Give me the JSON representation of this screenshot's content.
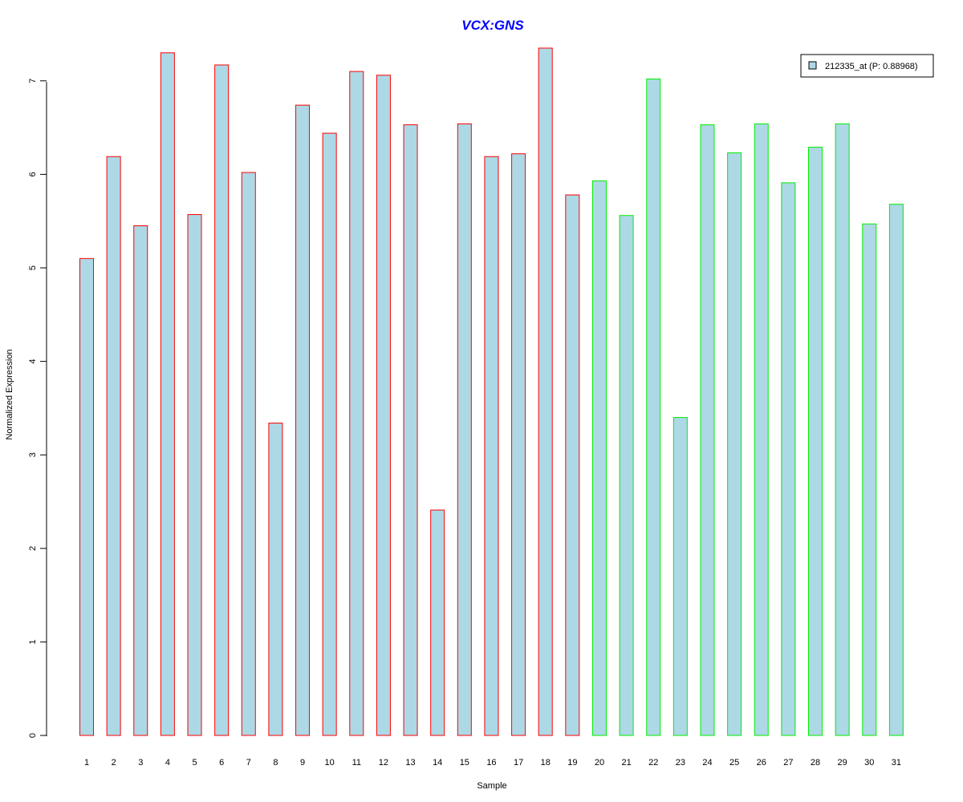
{
  "chart_data": {
    "type": "bar",
    "title": "VCX:GNS",
    "xlabel": "Sample",
    "ylabel": "Normalized Expression",
    "ylim": [
      0,
      7.4
    ],
    "yticks": [
      0,
      1,
      2,
      3,
      4,
      5,
      6,
      7
    ],
    "categories": [
      "1",
      "2",
      "3",
      "4",
      "5",
      "6",
      "7",
      "8",
      "9",
      "10",
      "11",
      "12",
      "13",
      "14",
      "15",
      "16",
      "17",
      "18",
      "19",
      "20",
      "21",
      "22",
      "23",
      "24",
      "25",
      "26",
      "27",
      "28",
      "29",
      "30",
      "31"
    ],
    "values": [
      5.1,
      6.19,
      5.45,
      7.3,
      5.57,
      7.17,
      6.02,
      3.34,
      6.74,
      6.44,
      7.1,
      7.06,
      6.53,
      2.41,
      6.54,
      6.19,
      6.22,
      7.35,
      5.78,
      5.93,
      5.56,
      7.02,
      3.4,
      6.53,
      6.23,
      6.54,
      5.91,
      6.29,
      6.54,
      5.47,
      5.68
    ],
    "group_border_colors": [
      "#ff0000",
      "#ff0000",
      "#ff0000",
      "#ff0000",
      "#ff0000",
      "#ff0000",
      "#ff0000",
      "#ff0000",
      "#ff0000",
      "#ff0000",
      "#ff0000",
      "#ff0000",
      "#ff0000",
      "#ff0000",
      "#ff0000",
      "#ff0000",
      "#ff0000",
      "#ff0000",
      "#ff0000",
      "#00ee00",
      "#00ee00",
      "#00ee00",
      "#00ee00",
      "#00ee00",
      "#00ee00",
      "#00ee00",
      "#00ee00",
      "#00ee00",
      "#00ee00",
      "#00ee00",
      "#00ee00"
    ],
    "bar_fill_color": "#add8e6",
    "title_color": "#0000ff",
    "legend": {
      "label": "212335_at (P: 0.88968)",
      "position": "top-right"
    },
    "grid": false
  }
}
